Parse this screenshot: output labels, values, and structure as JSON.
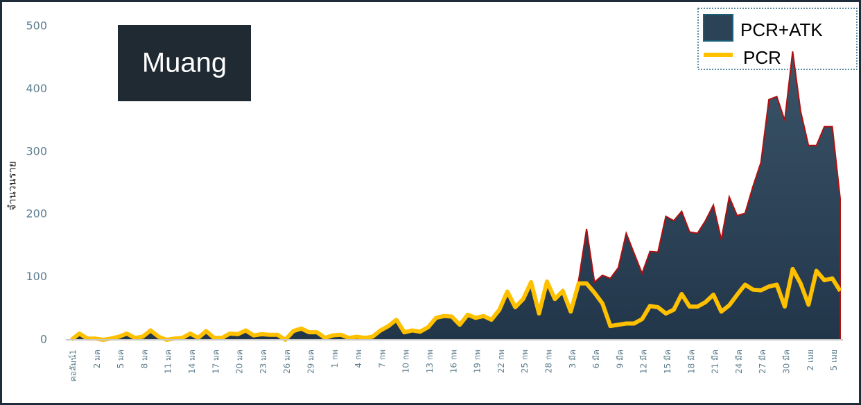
{
  "chart_data": {
    "type": "area_line",
    "title": "Muang",
    "y_label": "จำนวนราย",
    "categories": [
      "คอลัมน์1",
      null,
      null,
      "2 มค",
      null,
      null,
      "5 มค",
      null,
      null,
      "8 มค",
      null,
      null,
      "11 มค",
      null,
      null,
      "14 มค",
      null,
      null,
      "17 มค",
      null,
      null,
      "20 มค",
      null,
      null,
      "23 มค",
      null,
      null,
      "26 มค",
      null,
      null,
      "29 มค",
      null,
      null,
      "1 กพ",
      null,
      null,
      "4 กพ",
      null,
      null,
      "7 กพ",
      null,
      null,
      "10 กพ",
      null,
      null,
      "13 กพ",
      null,
      null,
      "16 กพ",
      null,
      null,
      "19 กพ",
      null,
      null,
      "22 กพ",
      null,
      null,
      "25 กพ",
      null,
      null,
      "28 กพ",
      null,
      null,
      "3 มีค",
      null,
      null,
      "6 มีค",
      null,
      null,
      "9 มีค",
      null,
      null,
      "12 มีค",
      null,
      null,
      "15 มีค",
      null,
      null,
      "18 มีค",
      null,
      null,
      "21 มีค",
      null,
      null,
      "24 มีค",
      null,
      null,
      "27 มีค",
      null,
      null,
      "30 มีค",
      null,
      null,
      "2 เมย",
      null,
      null,
      "5 เมย",
      null
    ],
    "series": [
      {
        "name": "PCR+ATK",
        "kind": "area",
        "color": "#2c4357",
        "edge_color": "#b01010",
        "values": [
          0,
          10,
          2,
          2,
          0,
          2,
          5,
          10,
          3,
          5,
          15,
          5,
          0,
          2,
          3,
          10,
          3,
          14,
          3,
          3,
          10,
          9,
          15,
          7,
          9,
          8,
          8,
          0,
          14,
          18,
          12,
          12,
          3,
          7,
          8,
          3,
          5,
          3,
          5,
          15,
          22,
          32,
          12,
          15,
          13,
          20,
          35,
          38,
          37,
          24,
          40,
          35,
          38,
          32,
          48,
          77,
          52,
          65,
          92,
          42,
          93,
          65,
          80,
          45,
          95,
          177,
          92,
          103,
          98,
          115,
          170,
          138,
          106,
          141,
          140,
          197,
          190,
          205,
          172,
          170,
          190,
          215,
          160,
          228,
          198,
          202,
          245,
          283,
          383,
          388,
          350,
          460,
          365,
          310,
          310,
          340,
          340,
          225
        ]
      },
      {
        "name": "PCR",
        "kind": "line",
        "color": "#ffc000",
        "values": [
          0,
          10,
          2,
          2,
          0,
          2,
          5,
          10,
          3,
          5,
          15,
          5,
          0,
          2,
          3,
          10,
          3,
          14,
          3,
          3,
          10,
          9,
          15,
          7,
          9,
          8,
          8,
          0,
          14,
          18,
          12,
          12,
          3,
          7,
          8,
          3,
          5,
          3,
          5,
          15,
          22,
          32,
          12,
          15,
          13,
          20,
          35,
          38,
          37,
          24,
          40,
          35,
          38,
          32,
          48,
          77,
          52,
          65,
          92,
          42,
          93,
          65,
          78,
          45,
          90,
          90,
          75,
          58,
          22,
          24,
          26,
          26,
          33,
          54,
          52,
          42,
          48,
          73,
          53,
          53,
          60,
          72,
          45,
          55,
          72,
          88,
          80,
          79,
          85,
          88,
          53,
          113,
          90,
          56,
          110,
          95,
          98,
          78
        ]
      }
    ],
    "ylim": [
      0,
      500
    ],
    "yticks": [
      0,
      100,
      200,
      300,
      400,
      500
    ],
    "grid": false,
    "legend": "upper right"
  }
}
